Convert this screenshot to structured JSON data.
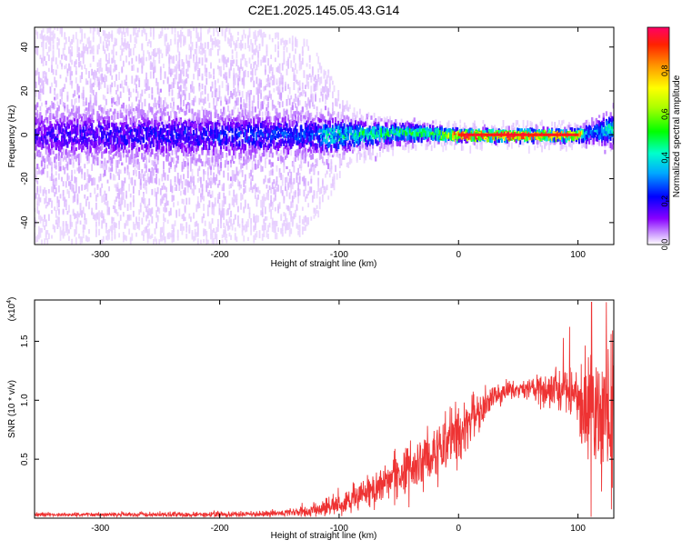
{
  "title": "C2E1.2025.145.05.43.G14",
  "chart_data": [
    {
      "type": "heatmap",
      "xlabel": "Height of straight line (km)",
      "ylabel": "Frequency (Hz)",
      "xlim": [
        -355,
        130
      ],
      "ylim": [
        -50,
        49
      ],
      "xticks": [
        -300,
        -200,
        -100,
        0,
        100
      ],
      "yticks": [
        -40,
        -20,
        0,
        20,
        40
      ],
      "colorbar": {
        "label": "Normalized spectral amplitude",
        "range": [
          0,
          1
        ],
        "ticks": [
          "0.0",
          "0.2",
          "0.4",
          "0.6",
          "0.8"
        ],
        "tick_values": [
          0,
          0.2,
          0.4,
          0.6,
          0.8
        ]
      },
      "band_center_hz": [
        {
          "x": -355,
          "y": 0
        },
        {
          "x": -300,
          "y": 0
        },
        {
          "x": -200,
          "y": 0
        },
        {
          "x": -100,
          "y": 0
        },
        {
          "x": -60,
          "y": 1
        },
        {
          "x": -30,
          "y": 1
        },
        {
          "x": 0,
          "y": 0
        },
        {
          "x": 50,
          "y": 0
        },
        {
          "x": 100,
          "y": 0
        },
        {
          "x": 130,
          "y": 3
        }
      ],
      "band_halfwidth_hz": [
        {
          "x": -355,
          "y": 10
        },
        {
          "x": -200,
          "y": 9
        },
        {
          "x": -120,
          "y": 8
        },
        {
          "x": -80,
          "y": 5
        },
        {
          "x": -30,
          "y": 3
        },
        {
          "x": 0,
          "y": 2
        },
        {
          "x": 100,
          "y": 2
        },
        {
          "x": 130,
          "y": 7
        }
      ],
      "noise_extent_hz": [
        {
          "x": -355,
          "y": 49
        },
        {
          "x": -200,
          "y": 49
        },
        {
          "x": -130,
          "y": 45
        },
        {
          "x": -110,
          "y": 30
        },
        {
          "x": -90,
          "y": 12
        },
        {
          "x": -40,
          "y": 6
        },
        {
          "x": 130,
          "y": 6
        }
      ],
      "peak_amplitude": [
        {
          "x": -355,
          "y": 0.18
        },
        {
          "x": -120,
          "y": 0.28
        },
        {
          "x": -110,
          "y": 0.45
        },
        {
          "x": -60,
          "y": 0.5
        },
        {
          "x": -20,
          "y": 0.55
        },
        {
          "x": 0,
          "y": 0.95
        },
        {
          "x": 60,
          "y": 0.95
        },
        {
          "x": 100,
          "y": 0.9
        },
        {
          "x": 110,
          "y": 0.3
        },
        {
          "x": 130,
          "y": 0.5
        }
      ]
    },
    {
      "type": "line",
      "xlabel": "Height of straight line (km)",
      "ylabel": "SNR (10 * v/v)",
      "exponent_label": "(x10",
      "exponent_sup": "4",
      "exponent_close": ")",
      "xlim": [
        -355,
        130
      ],
      "ylim": [
        0,
        18500
      ],
      "xticks": [
        -300,
        -200,
        -100,
        0,
        100
      ],
      "yticks": [
        5000,
        10000,
        15000
      ],
      "ytick_labels": [
        "0.5",
        "1.0",
        "1.5"
      ],
      "color": "#ee3333",
      "series": [
        {
          "values_mean": [
            {
              "x": -355,
              "y": 300
            },
            {
              "x": -200,
              "y": 300
            },
            {
              "x": -150,
              "y": 400
            },
            {
              "x": -120,
              "y": 700
            },
            {
              "x": -100,
              "y": 1200
            },
            {
              "x": -80,
              "y": 2000
            },
            {
              "x": -60,
              "y": 3000
            },
            {
              "x": -40,
              "y": 4200
            },
            {
              "x": -20,
              "y": 5500
            },
            {
              "x": 0,
              "y": 7000
            },
            {
              "x": 15,
              "y": 8800
            },
            {
              "x": 30,
              "y": 10300
            },
            {
              "x": 40,
              "y": 10800
            },
            {
              "x": 60,
              "y": 11000
            },
            {
              "x": 80,
              "y": 11000
            },
            {
              "x": 95,
              "y": 10800
            },
            {
              "x": 105,
              "y": 9500
            },
            {
              "x": 115,
              "y": 8500
            },
            {
              "x": 130,
              "y": 8500
            }
          ],
          "values_spread": [
            {
              "x": -355,
              "y": 150
            },
            {
              "x": -150,
              "y": 250
            },
            {
              "x": -110,
              "y": 700
            },
            {
              "x": -60,
              "y": 1500
            },
            {
              "x": -20,
              "y": 2500
            },
            {
              "x": 0,
              "y": 2500
            },
            {
              "x": 30,
              "y": 1000
            },
            {
              "x": 50,
              "y": 500
            },
            {
              "x": 70,
              "y": 1400
            },
            {
              "x": 90,
              "y": 1800
            },
            {
              "x": 100,
              "y": 3000
            },
            {
              "x": 110,
              "y": 5000
            },
            {
              "x": 130,
              "y": 6000
            }
          ]
        }
      ]
    }
  ]
}
